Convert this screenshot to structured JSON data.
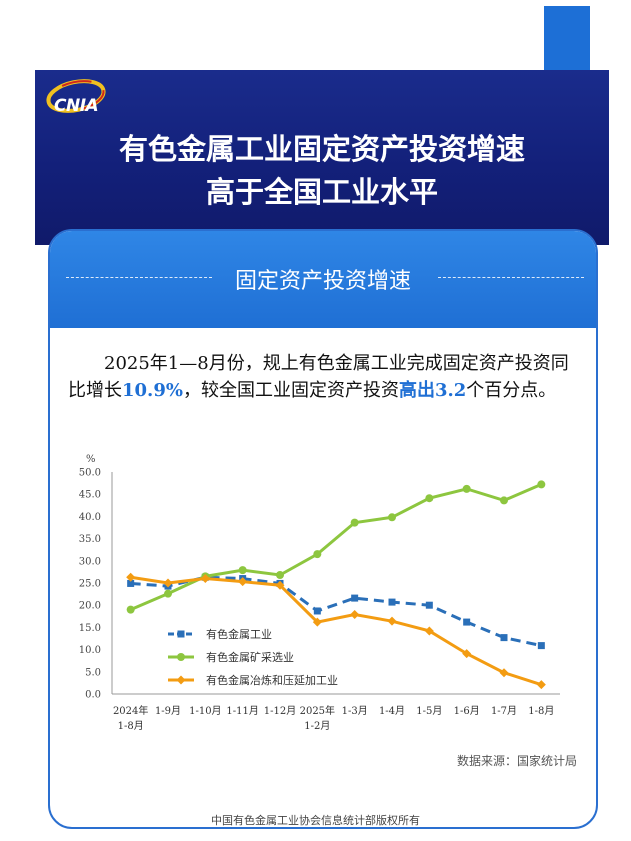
{
  "header": {
    "logo_text": "CNIA",
    "title_line1": "有色金属工业固定资产投资增速",
    "title_line2": "高于全国工业水平"
  },
  "section": {
    "title": "固定资产投资增速"
  },
  "paragraph": {
    "part1": "2025年1—8月份，规上有色金属工业完成固定资产投资同比增长",
    "value1": "10.9%",
    "part2": "，较全国工业固定资产投资",
    "highlight2": "高出3.2",
    "part3": "个百分点。"
  },
  "chart_data": {
    "type": "line",
    "ylabel": "%",
    "ylim": [
      0,
      50
    ],
    "yticks": [
      "0.0",
      "5.0",
      "10.0",
      "15.0",
      "20.0",
      "25.0",
      "30.0",
      "35.0",
      "40.0",
      "45.0",
      "50.0"
    ],
    "categories": [
      "2024年 1-8月",
      "1-9月",
      "1-10月",
      "1-11月",
      "1-12月",
      "2025年 1-2月",
      "1-3月",
      "1-4月",
      "1-5月",
      "1-6月",
      "1-7月",
      "1-8月"
    ],
    "legend_position": "bottom-left",
    "grid": false,
    "series": [
      {
        "name": "有色金属工业",
        "color": "#2a6fb8",
        "style": "dashed",
        "marker": "square",
        "values": [
          24.9,
          24.3,
          26.3,
          26.0,
          24.9,
          18.7,
          21.6,
          20.7,
          20.0,
          16.2,
          12.7,
          10.9
        ]
      },
      {
        "name": "有色金属矿采选业",
        "color": "#8dc63f",
        "style": "solid",
        "marker": "circle",
        "values": [
          19.0,
          22.6,
          26.5,
          27.9,
          26.8,
          31.5,
          38.6,
          39.8,
          44.1,
          46.2,
          43.6,
          47.2
        ]
      },
      {
        "name": "有色金属冶炼和压延加工业",
        "color": "#f39c12",
        "style": "solid",
        "marker": "diamond",
        "values": [
          26.3,
          25.0,
          26.0,
          25.3,
          24.5,
          16.2,
          17.9,
          16.4,
          14.2,
          9.1,
          4.8,
          2.1
        ]
      }
    ]
  },
  "source": "数据来源：国家统计局",
  "footer": "中国有色金属工业协会信息统计部版权所有"
}
